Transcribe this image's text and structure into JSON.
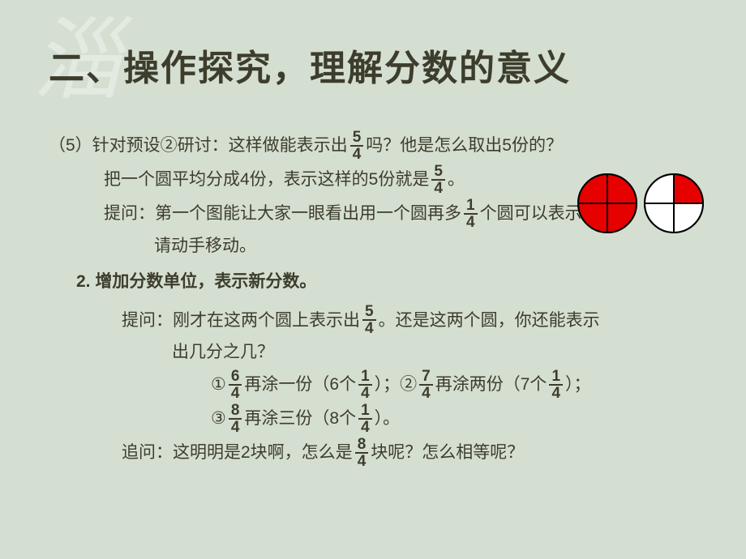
{
  "watermark": "淄",
  "title": "二、操作探究，理解分数的意义",
  "lines": {
    "l1a": "（5）针对预设②研讨：这样做能表示出",
    "l1b": "吗？他是怎么取出5份的？",
    "l2a": "把一个圆平均分成4份，表示这样的5份就是",
    "l2b": "。",
    "l3a": "提问：第一个图能让大家一眼看出用一个圆再多",
    "l3b": "个圆可以表示",
    "l4": "请动手移动。",
    "l5": "2. 增加分数单位，表示新分数。",
    "l6a": "提问：刚才在这两个圆上表示出",
    "l6b": "。还是这两个圆，你还能表示",
    "l7": "出几分之几？",
    "opt1a": "①",
    "opt1b": "再涂一份（6个",
    "opt1c": "）；②",
    "opt2b": "再涂两份（7个",
    "opt2c": "）；",
    "opt3a": "③",
    "opt3b": "再涂三份（8个",
    "opt3c": "）。",
    "l8a": "追问：这明明是2块啊，怎么是",
    "l8b": "块呢？怎么相等呢？"
  },
  "fractions": {
    "f54": {
      "n": "5",
      "d": "4"
    },
    "f14": {
      "n": "1",
      "d": "4"
    },
    "f64": {
      "n": "6",
      "d": "4"
    },
    "f74": {
      "n": "7",
      "d": "4"
    },
    "f84": {
      "n": "8",
      "d": "4"
    }
  },
  "circles": {
    "radius": 36,
    "stroke": "#000000",
    "stroke_width": 2,
    "fill_on": "#e60000",
    "fill_off": "#ffffff",
    "circle1_quadrants": [
      "on",
      "on",
      "on",
      "on"
    ],
    "circle2_quadrants": [
      "on",
      "off",
      "off",
      "off"
    ]
  },
  "styling": {
    "background": "#d5dfd1",
    "text_color": "#3d3d2d",
    "title_fontsize": 44,
    "body_fontsize": 21,
    "fraction_fontsize": 19,
    "watermark_color": "rgba(255,255,255,0.35)"
  }
}
